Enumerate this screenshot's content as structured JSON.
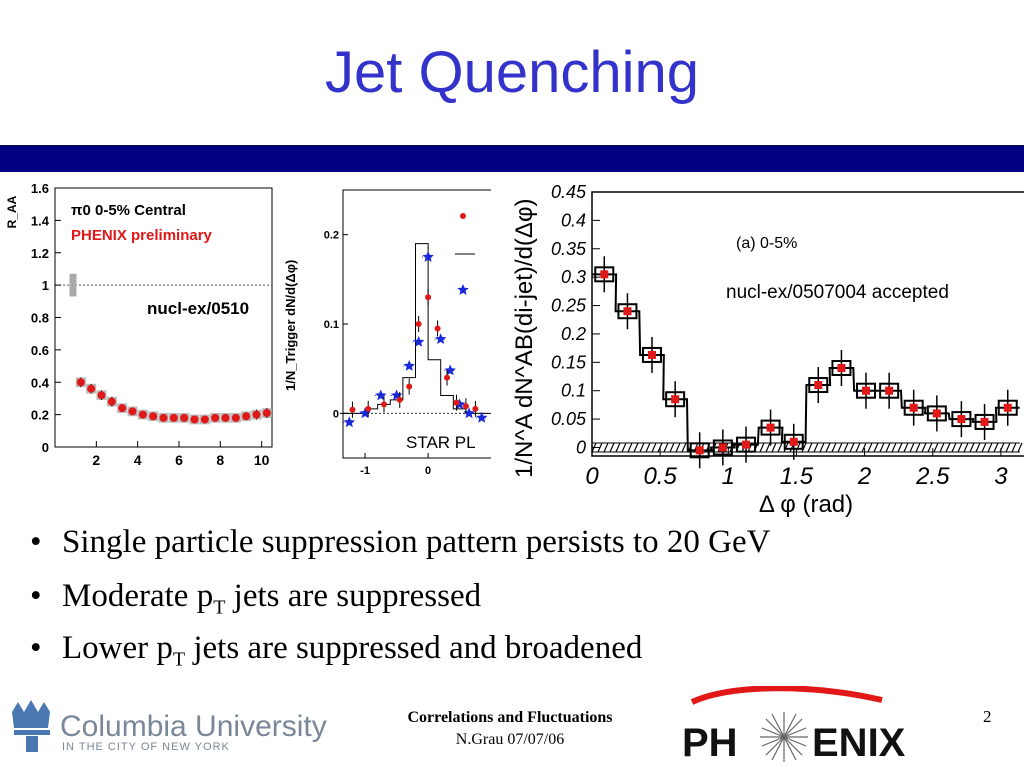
{
  "slide": {
    "title": "Jet Quenching",
    "page_number": "2",
    "footer_title": "Correlations and Fluctuations",
    "footer_author_date": "N.Grau 07/07/06"
  },
  "bullets": [
    {
      "text": "Single particle suppression pattern persists to 20 GeV"
    },
    {
      "text_before": "Moderate p",
      "sub": "T",
      "text_after": " jets are suppressed"
    },
    {
      "text_before": "Lower p",
      "sub": "T",
      "text_after": " jets are suppressed and broadened"
    }
  ],
  "logos": {
    "columbia_name": "Columbia University",
    "columbia_tagline": "IN THE CITY OF NEW YORK",
    "phenix": "PHENIX"
  },
  "colors": {
    "title": "#3333cc",
    "band": "#000080",
    "data_red": "#e01818",
    "data_blue": "#1a2ad8"
  },
  "chart_data": [
    {
      "type": "scatter",
      "ylabel": "R_AA",
      "legend": [
        "π0 0-5% Central",
        "PHENIX preliminary"
      ],
      "annotation": "nucl-ex/0510",
      "xlim": [
        0,
        10.5
      ],
      "ylim": [
        0,
        1.6
      ],
      "x_ticks": [
        "2",
        "4",
        "6",
        "8",
        "10"
      ],
      "y_ticks": [
        "0",
        "0.2",
        "0.4",
        "0.6",
        "0.8",
        "1",
        "1.2",
        "1.4",
        "1.6"
      ],
      "reference_line": 1,
      "series": [
        {
          "x": [
            1.25,
            1.75,
            2.25,
            2.75,
            3.25,
            3.75,
            4.25,
            4.75,
            5.25,
            5.75,
            6.25,
            6.75,
            7.25,
            7.75,
            8.25,
            8.75,
            9.25,
            9.75,
            10.25
          ],
          "y": [
            0.4,
            0.36,
            0.32,
            0.28,
            0.24,
            0.22,
            0.2,
            0.19,
            0.18,
            0.18,
            0.18,
            0.17,
            0.17,
            0.18,
            0.18,
            0.18,
            0.19,
            0.2,
            0.21
          ],
          "yerr": [
            0.03,
            0.03,
            0.03,
            0.03,
            0.02,
            0.02,
            0.02,
            0.02,
            0.02,
            0.02,
            0.02,
            0.02,
            0.02,
            0.02,
            0.02,
            0.02,
            0.02,
            0.03,
            0.03
          ]
        }
      ]
    },
    {
      "type": "scatter",
      "ylabel": "1/N_Trigger dN/d(Δφ)",
      "annotation": "STAR PL",
      "xlim": [
        -1.35,
        0.95
      ],
      "ylim": [
        -0.05,
        0.25
      ],
      "x_ticks": [
        "-1",
        "0"
      ],
      "y_ticks": [
        "0",
        "0.1",
        "0.2"
      ],
      "series": [
        {
          "name": "red circles",
          "marker": "circle",
          "x": [
            -1.2,
            -0.95,
            -0.7,
            -0.45,
            -0.3,
            -0.15,
            0.0,
            0.15,
            0.3,
            0.45,
            0.6,
            0.75
          ],
          "y": [
            0.004,
            0.005,
            0.01,
            0.015,
            0.03,
            0.1,
            0.13,
            0.095,
            0.04,
            0.012,
            0.008,
            0.005
          ]
        },
        {
          "name": "blue stars",
          "marker": "star",
          "x": [
            -1.25,
            -1.0,
            -0.75,
            -0.5,
            -0.3,
            -0.15,
            0.0,
            0.2,
            0.35,
            0.5,
            0.65,
            0.85
          ],
          "y": [
            -0.01,
            0.0,
            0.02,
            0.02,
            0.053,
            0.08,
            0.175,
            0.083,
            0.048,
            0.01,
            0.0,
            -0.005
          ]
        },
        {
          "name": "histogram",
          "marker": "step",
          "x": [
            -1.3,
            -1.1,
            -0.9,
            -0.7,
            -0.5,
            -0.3,
            -0.1,
            0.1,
            0.3,
            0.5,
            0.7,
            0.9
          ],
          "y": [
            0.0,
            0.0,
            0.005,
            0.01,
            0.015,
            0.04,
            0.19,
            0.06,
            0.02,
            0.005,
            0.0,
            0.0
          ]
        }
      ]
    },
    {
      "type": "bar",
      "title": "(a) 0-5%",
      "annotation": "nucl-ex/0507004 accepted",
      "xlabel": "Δ φ (rad)",
      "ylabel": "1/N^A dN^AB(di-jet)/d(Δφ)",
      "xlim": [
        0,
        3.14
      ],
      "ylim": [
        -0.015,
        0.45
      ],
      "x_ticks": [
        "0",
        "0.5",
        "1",
        "1.5",
        "2",
        "2.5",
        "3"
      ],
      "y_ticks": [
        "0",
        "0.05",
        "0.1",
        "0.15",
        "0.2",
        "0.25",
        "0.3",
        "0.35",
        "0.4",
        "0.45"
      ],
      "x": [
        0.09,
        0.26,
        0.44,
        0.61,
        0.79,
        0.96,
        1.13,
        1.31,
        1.48,
        1.66,
        1.83,
        2.01,
        2.18,
        2.36,
        2.53,
        2.71,
        2.88,
        3.05
      ],
      "values": [
        0.305,
        0.24,
        0.163,
        0.085,
        -0.005,
        0.0,
        0.005,
        0.035,
        0.01,
        0.11,
        0.14,
        0.1,
        0.1,
        0.07,
        0.06,
        0.05,
        0.045,
        0.07
      ]
    }
  ]
}
